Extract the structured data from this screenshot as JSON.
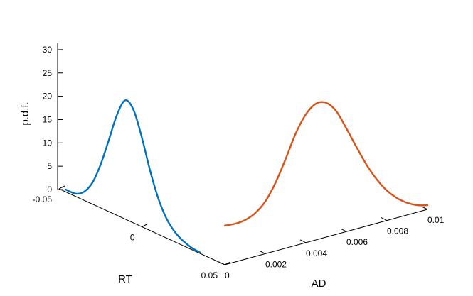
{
  "chart_data": {
    "type": "line",
    "projection": "3d",
    "grid": false,
    "legend": "none",
    "axes": {
      "x": {
        "label": "RT",
        "range": [
          -0.05,
          0.05
        ],
        "ticks": [
          "-0.05",
          "0",
          "0.05"
        ]
      },
      "y": {
        "label": "AD",
        "range": [
          0,
          0.01
        ],
        "ticks": [
          "0",
          "0.002",
          "0.004",
          "0.006",
          "0.008",
          "0.01"
        ]
      },
      "z": {
        "label": "p.d.f.",
        "range": [
          0,
          30
        ],
        "ticks": [
          "0",
          "5",
          "10",
          "15",
          "20",
          "25",
          "30"
        ]
      }
    },
    "series": [
      {
        "axis": "x",
        "color": "#0072BD",
        "x": [
          -0.046,
          -0.04,
          -0.035,
          -0.03,
          -0.025,
          -0.02,
          -0.015,
          -0.01,
          -0.005,
          0.0,
          0.005,
          0.01,
          0.015,
          0.02,
          0.025,
          0.03,
          0.035
        ],
        "y": [
          0.5,
          0.6,
          1.8,
          4.5,
          9.2,
          15.3,
          21.6,
          25.5,
          24.2,
          19.1,
          12.8,
          7.6,
          4.1,
          2.1,
          1.0,
          0.4,
          0.2
        ]
      },
      {
        "axis": "y",
        "color": "#D95319",
        "x": [
          0.0,
          0.0005,
          0.001,
          0.0015,
          0.002,
          0.0025,
          0.003,
          0.0035,
          0.004,
          0.0045,
          0.005,
          0.0055,
          0.006,
          0.0065,
          0.007,
          0.0075,
          0.008,
          0.0085,
          0.009,
          0.0095,
          0.01
        ],
        "y": [
          8.4,
          8.2,
          8.4,
          9.3,
          11.2,
          14.6,
          19.1,
          24.0,
          27.5,
          29.2,
          28.8,
          26.4,
          22.1,
          17.5,
          13.1,
          9.4,
          6.4,
          4.2,
          2.6,
          1.5,
          0.9
        ]
      }
    ]
  }
}
